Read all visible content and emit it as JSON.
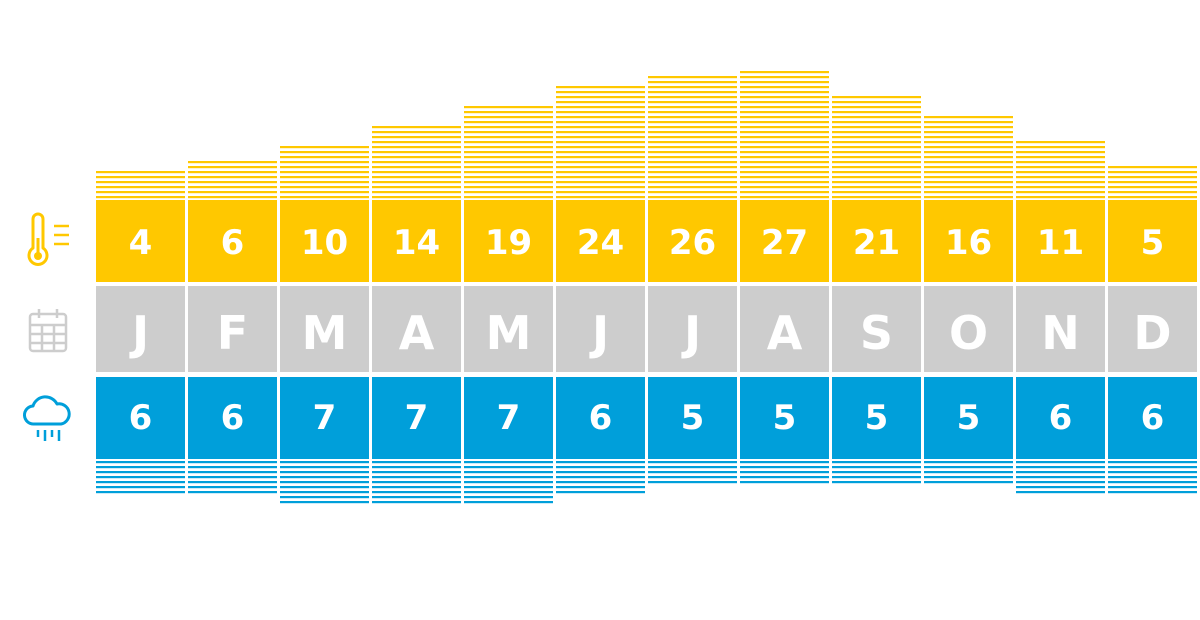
{
  "colors": {
    "temperature": "#ffc800",
    "month": "#cdcdcd",
    "rain": "#009fda",
    "icon_temperature": "#ffc800",
    "icon_calendar": "#cdcdcd",
    "icon_rain": "#009fda",
    "background": "#ffffff"
  },
  "icons": {
    "temperature": "thermometer-icon",
    "month": "calendar-icon",
    "rain": "rain-cloud-icon"
  },
  "chart_data": {
    "type": "table",
    "categories": [
      "J",
      "F",
      "M",
      "A",
      "M",
      "J",
      "J",
      "A",
      "S",
      "O",
      "N",
      "D"
    ],
    "series": [
      {
        "values": [
          4,
          6,
          10,
          14,
          19,
          24,
          26,
          27,
          21,
          16,
          11,
          5
        ]
      },
      {
        "values": [
          6,
          6,
          7,
          7,
          7,
          6,
          5,
          5,
          5,
          5,
          6,
          6
        ]
      }
    ],
    "grid": false,
    "legend": "none"
  }
}
